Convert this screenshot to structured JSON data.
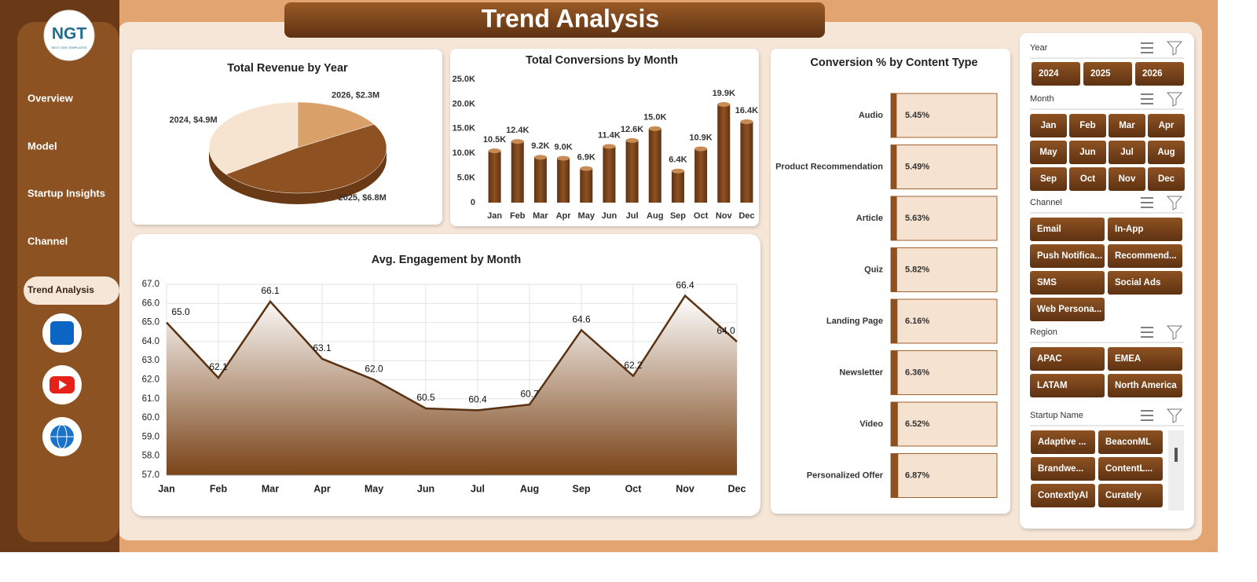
{
  "header": {
    "title": "Trend Analysis"
  },
  "logo": {
    "text": "NGT",
    "tagline": "NEXT GEN TEMPLATES"
  },
  "nav": [
    "Overview",
    "Model",
    "Startup Insights",
    "Channel",
    "Trend Analysis"
  ],
  "slicers": [
    {
      "title": "Year",
      "items": [
        "2024",
        "2025",
        "2026"
      ]
    },
    {
      "title": "Month",
      "items": [
        "Jan",
        "Feb",
        "Mar",
        "Apr",
        "May",
        "Jun",
        "Jul",
        "Aug",
        "Sep",
        "Oct",
        "Nov",
        "Dec"
      ]
    },
    {
      "title": "Channel",
      "items": [
        "Email",
        "In-App",
        "Push Notifica...",
        "Recommend...",
        "SMS",
        "Social Ads",
        "Web Persona..."
      ]
    },
    {
      "title": "Region",
      "items": [
        "APAC",
        "EMEA",
        "LATAM",
        "North America"
      ]
    },
    {
      "title": "Startup Name",
      "items": [
        "Adaptive ...",
        "BeaconML",
        "Brandwe...",
        "ContentL...",
        "ContextlyAI",
        "Curately"
      ]
    }
  ],
  "chart_data": [
    {
      "type": "pie",
      "title": "Total Revenue by Year",
      "values": [
        4.9,
        6.8,
        2.3
      ],
      "value_labels": [
        "2024, $4.9M",
        "2025, $6.8M",
        "2026, $2.3M"
      ],
      "colors": [
        "#f6e4d0",
        "#8e5222",
        "#d9a069"
      ]
    },
    {
      "type": "bar",
      "title": "Total Conversions by Month",
      "categories": [
        "Jan",
        "Feb",
        "Mar",
        "Apr",
        "May",
        "Jun",
        "Jul",
        "Aug",
        "Sep",
        "Oct",
        "Nov",
        "Dec"
      ],
      "values": [
        10500,
        12400,
        9200,
        9000,
        6900,
        11400,
        12600,
        15000,
        6400,
        10900,
        19900,
        16400
      ],
      "value_labels": [
        "10.5K",
        "12.4K",
        "9.2K",
        "9.0K",
        "6.9K",
        "11.4K",
        "12.6K",
        "15.0K",
        "6.4K",
        "10.9K",
        "19.9K",
        "16.4K"
      ],
      "color": "#7a4418",
      "ylim": [
        0,
        25000
      ],
      "yticks": [
        0,
        {
          "value": 5000,
          "label": "5.0K"
        },
        {
          "value": 10000,
          "label": "10.0K"
        },
        {
          "value": 15000,
          "label": "15.0K"
        },
        {
          "value": 20000,
          "label": "20.0K"
        },
        {
          "value": 25000,
          "label": "25.0K"
        }
      ]
    },
    {
      "type": "area",
      "title": "Avg. Engagement by Month",
      "categories": [
        "Jan",
        "Feb",
        "Mar",
        "Apr",
        "May",
        "Jun",
        "Jul",
        "Aug",
        "Sep",
        "Oct",
        "Nov",
        "Dec"
      ],
      "values": [
        65.0,
        62.1,
        66.1,
        63.1,
        62.0,
        60.5,
        60.4,
        60.7,
        64.6,
        62.2,
        66.4,
        64.0
      ],
      "value_labels": [
        "65.0",
        "62.1",
        "66.1",
        "63.1",
        "62.0",
        "60.5",
        "60.4",
        "60.7",
        "64.6",
        "62.2",
        "66.4",
        "64.0"
      ],
      "color": "#5a3212",
      "grid": true,
      "ylim": [
        57,
        67
      ],
      "yticks": [
        {
          "value": 57,
          "label": "57.0"
        },
        {
          "value": 58,
          "label": "58.0"
        },
        {
          "value": 59,
          "label": "59.0"
        },
        {
          "value": 60,
          "label": "60.0"
        },
        {
          "value": 61,
          "label": "61.0"
        },
        {
          "value": 62,
          "label": "62.0"
        },
        {
          "value": 63,
          "label": "63.0"
        },
        {
          "value": 64,
          "label": "64.0"
        },
        {
          "value": 65,
          "label": "65.0"
        },
        {
          "value": 66,
          "label": "66.0"
        },
        {
          "value": 67,
          "label": "67.0"
        }
      ]
    },
    {
      "type": "bar",
      "horizontal": true,
      "title": "Conversion % by Content Type",
      "categories": [
        "Audio",
        "Product Recommendation",
        "Article",
        "Quiz",
        "Landing Page",
        "Newsletter",
        "Video",
        "Personalized Offer"
      ],
      "values": [
        5.45,
        5.49,
        5.63,
        5.82,
        6.16,
        6.36,
        6.52,
        6.87
      ],
      "value_labels": [
        "5.45%",
        "5.49%",
        "5.63%",
        "5.82%",
        "6.16%",
        "6.36%",
        "6.52%",
        "6.87%"
      ],
      "color": "#8e5222",
      "xlim": [
        0,
        100
      ]
    }
  ]
}
